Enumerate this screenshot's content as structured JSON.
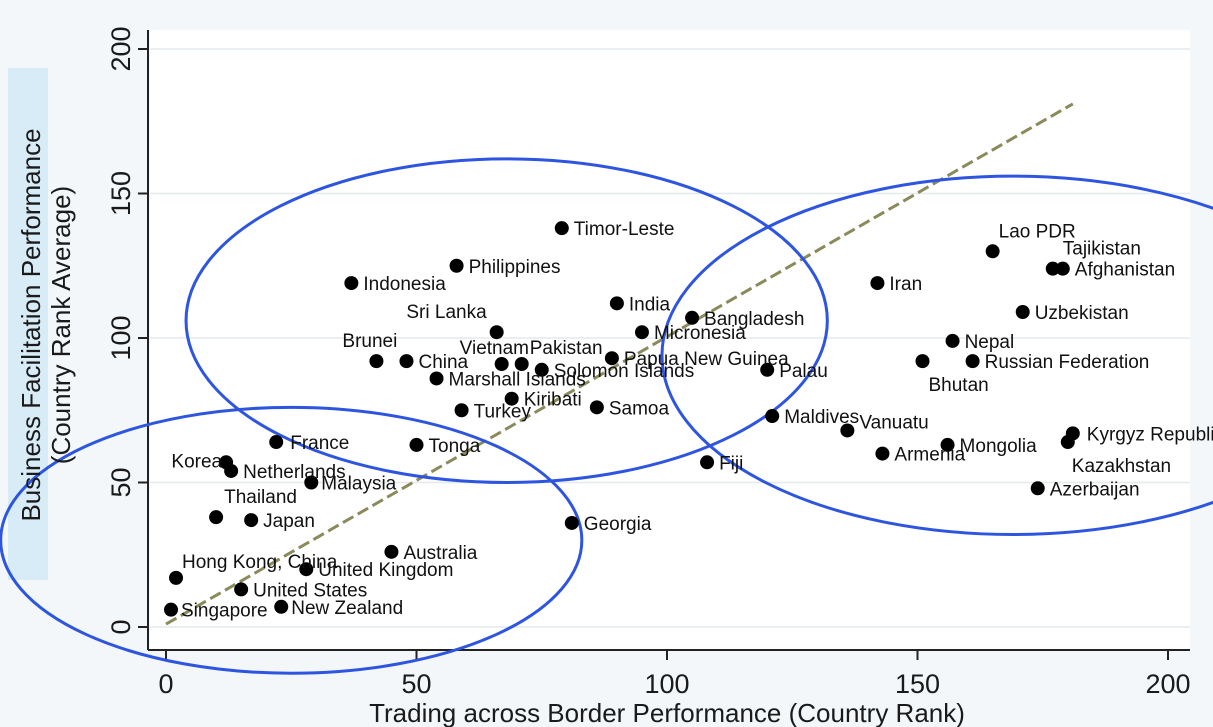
{
  "chart_data": {
    "type": "scatter",
    "xlabel": "Trading across Border Performance (Country Rank)",
    "ylabel_line1": "Business  Facilitation Performance",
    "ylabel_line2": "(Country Rank Average)",
    "xlim": [
      0,
      200
    ],
    "ylim": [
      0,
      200
    ],
    "xticks": [
      0,
      50,
      100,
      150,
      200
    ],
    "yticks": [
      0,
      50,
      100,
      150,
      200
    ],
    "grid": true,
    "trend_line": {
      "from": [
        0,
        1
      ],
      "to": [
        181,
        181
      ]
    },
    "clusters": [
      {
        "cx": 25,
        "cy": 30,
        "rx": 58,
        "ry": 46
      },
      {
        "cx": 68,
        "cy": 106,
        "rx": 64,
        "ry": 56
      },
      {
        "cx": 169,
        "cy": 94,
        "rx": 70,
        "ry": 62
      }
    ],
    "points": [
      {
        "label": "Singapore",
        "x": 1,
        "y": 6
      },
      {
        "label": "Hong Kong, China",
        "x": 2,
        "y": 17
      },
      {
        "label": "Korea",
        "x": 12,
        "y": 57
      },
      {
        "label": "Netherlands",
        "x": 13,
        "y": 54
      },
      {
        "label": "Thailand",
        "x": 10,
        "y": 38
      },
      {
        "label": "Japan",
        "x": 17,
        "y": 37
      },
      {
        "label": "France",
        "x": 22,
        "y": 64
      },
      {
        "label": "Malaysia",
        "x": 29,
        "y": 50
      },
      {
        "label": "United States",
        "x": 15,
        "y": 13
      },
      {
        "label": "United Kingdom",
        "x": 28,
        "y": 20
      },
      {
        "label": "New Zealand",
        "x": 23,
        "y": 7
      },
      {
        "label": "Australia",
        "x": 45,
        "y": 26
      },
      {
        "label": "Indonesia",
        "x": 37,
        "y": 119
      },
      {
        "label": "Philippines",
        "x": 58,
        "y": 125
      },
      {
        "label": "Timor-Leste",
        "x": 79,
        "y": 138
      },
      {
        "label": "Sri Lanka",
        "x": 66,
        "y": 102
      },
      {
        "label": "Brunei",
        "x": 42,
        "y": 92
      },
      {
        "label": "China",
        "x": 48,
        "y": 92
      },
      {
        "label": "Marshall Islands",
        "x": 54,
        "y": 86
      },
      {
        "label": "Vietnam",
        "x": 67,
        "y": 91
      },
      {
        "label": "Pakistan",
        "x": 71,
        "y": 91
      },
      {
        "label": "Solomon Islands",
        "x": 75,
        "y": 89
      },
      {
        "label": "India",
        "x": 90,
        "y": 112
      },
      {
        "label": "Micronesia",
        "x": 95,
        "y": 102
      },
      {
        "label": "Papua New Guinea",
        "x": 89,
        "y": 93
      },
      {
        "label": "Kiribati",
        "x": 69,
        "y": 79
      },
      {
        "label": "Turkey",
        "x": 59,
        "y": 75
      },
      {
        "label": "Samoa",
        "x": 86,
        "y": 76
      },
      {
        "label": "Tonga",
        "x": 50,
        "y": 63
      },
      {
        "label": "Bangladesh",
        "x": 105,
        "y": 107
      },
      {
        "label": "Palau",
        "x": 120,
        "y": 89
      },
      {
        "label": "Maldives",
        "x": 121,
        "y": 73
      },
      {
        "label": "Fiji",
        "x": 108,
        "y": 57
      },
      {
        "label": "Georgia",
        "x": 81,
        "y": 36
      },
      {
        "label": "Iran",
        "x": 142,
        "y": 119
      },
      {
        "label": "Lao PDR",
        "x": 165,
        "y": 130
      },
      {
        "label": "Tajikistan",
        "x": 177,
        "y": 124
      },
      {
        "label": "Afghanistan",
        "x": 179,
        "y": 124
      },
      {
        "label": "Uzbekistan",
        "x": 171,
        "y": 109
      },
      {
        "label": "Nepal",
        "x": 157,
        "y": 99
      },
      {
        "label": "Bhutan",
        "x": 151,
        "y": 92
      },
      {
        "label": "Russian Federation",
        "x": 161,
        "y": 92
      },
      {
        "label": "Vanuatu",
        "x": 136,
        "y": 68
      },
      {
        "label": "Armenia",
        "x": 143,
        "y": 60
      },
      {
        "label": "Mongolia",
        "x": 156,
        "y": 63
      },
      {
        "label": "Kyrgyz Republic",
        "x": 181,
        "y": 67
      },
      {
        "label": "Kazakhstan",
        "x": 180,
        "y": 64
      },
      {
        "label": "Azerbaijan",
        "x": 174,
        "y": 48
      }
    ]
  }
}
